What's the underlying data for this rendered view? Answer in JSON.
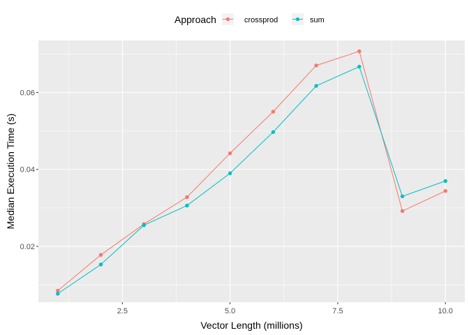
{
  "chart_data": {
    "type": "line",
    "title": "",
    "xlabel": "Vector Length (millions)",
    "ylabel": "Median Execution Time (s)",
    "xlim": [
      0.55,
      10.45
    ],
    "ylim": [
      0.0055,
      0.0735
    ],
    "x_ticks": [
      2.5,
      5.0,
      7.5,
      10.0
    ],
    "x_tick_labels": [
      "2.5",
      "5.0",
      "7.5",
      "10.0"
    ],
    "y_ticks": [
      0.02,
      0.04,
      0.06
    ],
    "y_tick_labels": [
      "0.02",
      "0.04",
      "0.06"
    ],
    "x_minor": [
      1.25,
      3.75,
      6.25,
      8.75
    ],
    "y_minor": [
      0.01,
      0.03,
      0.05,
      0.07
    ],
    "x": [
      1,
      2,
      3,
      4,
      5,
      6,
      7,
      8,
      9,
      10
    ],
    "series": [
      {
        "name": "crossprod",
        "color": "#F8766D",
        "values": [
          0.0085,
          0.0178,
          0.0258,
          0.0328,
          0.0442,
          0.055,
          0.067,
          0.0707,
          0.0292,
          0.0344
        ]
      },
      {
        "name": "sum",
        "color": "#00BFC4",
        "values": [
          0.0077,
          0.0153,
          0.0255,
          0.0306,
          0.039,
          0.0497,
          0.0617,
          0.0667,
          0.033,
          0.037
        ]
      }
    ],
    "legend": {
      "title": "Approach",
      "position": "top"
    },
    "grid": true,
    "panel_background": "#EBEBEB",
    "grid_color": "#FFFFFF"
  }
}
